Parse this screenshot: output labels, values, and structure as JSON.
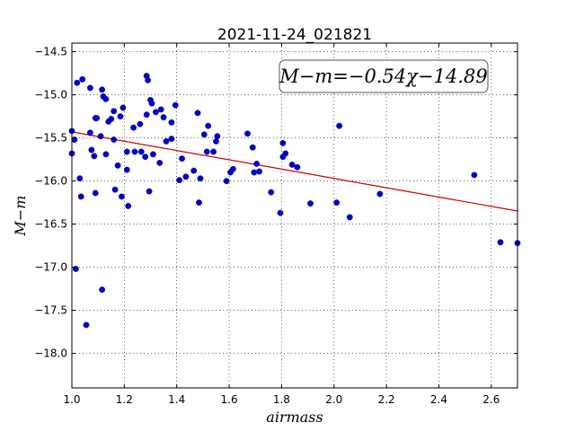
{
  "chart_data": {
    "type": "scatter",
    "title": "2021-11-24_021821",
    "xlabel": "airmass",
    "ylabel": "M−m",
    "xlim": [
      1.0,
      2.7
    ],
    "ylim": [
      -14.4,
      -18.4
    ],
    "y_inverted": true,
    "grid": true,
    "xticks": [
      "1.0",
      "1.2",
      "1.4",
      "1.6",
      "1.8",
      "2.0",
      "2.2",
      "2.4",
      "2.6"
    ],
    "yticks": [
      "−14.5",
      "−15.0",
      "−15.5",
      "−16.0",
      "−16.5",
      "−17.0",
      "−17.5",
      "−18.0"
    ],
    "annotation": "M−m=−0.54χ−14.89",
    "annotation_position": "top-right",
    "fit": {
      "slope": -0.54,
      "intercept": -14.89,
      "color": "#cc0000"
    },
    "point_color": "#0000cc",
    "series": [
      {
        "points": [
          [
            1.0,
            -15.42
          ],
          [
            1.0,
            -15.68
          ],
          [
            1.01,
            -15.52
          ],
          [
            1.015,
            -17.02
          ],
          [
            1.02,
            -14.86
          ],
          [
            1.03,
            -15.97
          ],
          [
            1.035,
            -16.18
          ],
          [
            1.04,
            -14.82
          ],
          [
            1.055,
            -17.67
          ],
          [
            1.07,
            -14.92
          ],
          [
            1.07,
            -15.44
          ],
          [
            1.075,
            -15.64
          ],
          [
            1.085,
            -15.71
          ],
          [
            1.09,
            -16.14
          ],
          [
            1.09,
            -15.27
          ],
          [
            1.095,
            -15.27
          ],
          [
            1.11,
            -15.48
          ],
          [
            1.115,
            -14.94
          ],
          [
            1.12,
            -15.02
          ],
          [
            1.115,
            -17.26
          ],
          [
            1.13,
            -15.05
          ],
          [
            1.13,
            -15.69
          ],
          [
            1.14,
            -15.31
          ],
          [
            1.15,
            -15.28
          ],
          [
            1.16,
            -15.19
          ],
          [
            1.16,
            -15.52
          ],
          [
            1.165,
            -16.1
          ],
          [
            1.175,
            -15.82
          ],
          [
            1.185,
            -15.25
          ],
          [
            1.19,
            -16.18
          ],
          [
            1.195,
            -15.15
          ],
          [
            1.21,
            -15.87
          ],
          [
            1.215,
            -16.29
          ],
          [
            1.21,
            -15.66
          ],
          [
            1.235,
            -15.38
          ],
          [
            1.24,
            -15.66
          ],
          [
            1.26,
            -15.34
          ],
          [
            1.265,
            -15.66
          ],
          [
            1.28,
            -15.72
          ],
          [
            1.285,
            -14.78
          ],
          [
            1.285,
            -15.23
          ],
          [
            1.29,
            -14.83
          ],
          [
            1.295,
            -16.12
          ],
          [
            1.3,
            -15.06
          ],
          [
            1.305,
            -15.1
          ],
          [
            1.31,
            -15.69
          ],
          [
            1.32,
            -15.2
          ],
          [
            1.335,
            -15.79
          ],
          [
            1.34,
            -15.17
          ],
          [
            1.35,
            -15.26
          ],
          [
            1.36,
            -15.54
          ],
          [
            1.38,
            -15.32
          ],
          [
            1.38,
            -15.51
          ],
          [
            1.395,
            -15.12
          ],
          [
            1.41,
            -15.99
          ],
          [
            1.42,
            -15.74
          ],
          [
            1.435,
            -15.95
          ],
          [
            1.465,
            -15.88
          ],
          [
            1.48,
            -15.21
          ],
          [
            1.485,
            -16.25
          ],
          [
            1.49,
            -15.97
          ],
          [
            1.505,
            -15.46
          ],
          [
            1.515,
            -15.66
          ],
          [
            1.52,
            -15.36
          ],
          [
            1.54,
            -15.66
          ],
          [
            1.55,
            -15.54
          ],
          [
            1.555,
            -15.48
          ],
          [
            1.59,
            -16.0
          ],
          [
            1.605,
            -15.9
          ],
          [
            1.615,
            -15.86
          ],
          [
            1.67,
            -15.45
          ],
          [
            1.69,
            -15.61
          ],
          [
            1.695,
            -15.9
          ],
          [
            1.705,
            -15.8
          ],
          [
            1.715,
            -15.89
          ],
          [
            1.76,
            -16.13
          ],
          [
            1.795,
            -16.37
          ],
          [
            1.805,
            -15.56
          ],
          [
            1.805,
            -15.72
          ],
          [
            1.815,
            -15.68
          ],
          [
            1.84,
            -15.81
          ],
          [
            1.86,
            -15.84
          ],
          [
            1.91,
            -16.26
          ],
          [
            2.01,
            -16.25
          ],
          [
            2.02,
            -15.36
          ],
          [
            2.06,
            -16.42
          ],
          [
            2.175,
            -16.15
          ],
          [
            2.535,
            -15.93
          ],
          [
            2.635,
            -16.71
          ],
          [
            2.7,
            -16.72
          ]
        ]
      }
    ]
  }
}
